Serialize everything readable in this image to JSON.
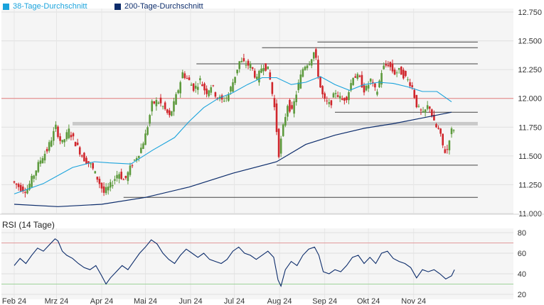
{
  "colors": {
    "ma38": "#1aa3dc",
    "ma200": "#0c2c6b",
    "candle_up": "#5d9a3d",
    "candle_down": "#d0262c",
    "rsi_line": "#0c2c6b",
    "rsi_upper": "#e2999b",
    "rsi_lower": "#9fd39a",
    "resistance": "#e57f80",
    "support": "#444444",
    "zone": "#bfbfbf"
  },
  "chart_data": [
    {
      "type": "candlestick",
      "legend": [
        {
          "name": "38-Tage-Durchschnitt",
          "color": "#1aa3dc"
        },
        {
          "name": "200-Tage-Durchschnitt",
          "color": "#0c2c6b"
        }
      ],
      "legend_position": "top-left",
      "y_ticks": [
        "12.750",
        "12.500",
        "12.250",
        "12.000",
        "11.750",
        "11.500",
        "11.250",
        "11.000"
      ],
      "ylim": [
        11.0,
        12.75
      ],
      "x_ticks": [
        "Feb 24",
        "Mrz 24",
        "Apr 24",
        "Mai 24",
        "Jun 24",
        "Jul 24",
        "Aug 24",
        "Sep 24",
        "Okt 24",
        "Nov 24"
      ],
      "x_tick_days": [
        0,
        29,
        60,
        90,
        121,
        151,
        182,
        213,
        243,
        274
      ],
      "grid": true,
      "price_path": [
        [
          0,
          11.28
        ],
        [
          6,
          11.22
        ],
        [
          10,
          11.2
        ],
        [
          15,
          11.34
        ],
        [
          20,
          11.48
        ],
        [
          24,
          11.55
        ],
        [
          30,
          11.75
        ],
        [
          34,
          11.6
        ],
        [
          39,
          11.72
        ],
        [
          44,
          11.6
        ],
        [
          49,
          11.48
        ],
        [
          54,
          11.42
        ],
        [
          58,
          11.32
        ],
        [
          63,
          11.18
        ],
        [
          68,
          11.25
        ],
        [
          73,
          11.36
        ],
        [
          77,
          11.28
        ],
        [
          82,
          11.42
        ],
        [
          88,
          11.55
        ],
        [
          92,
          11.7
        ],
        [
          96,
          11.95
        ],
        [
          100,
          11.98
        ],
        [
          104,
          11.92
        ],
        [
          108,
          11.84
        ],
        [
          111,
          11.95
        ],
        [
          114,
          12.08
        ],
        [
          117,
          12.22
        ],
        [
          121,
          12.16
        ],
        [
          125,
          12.08
        ],
        [
          129,
          12.16
        ],
        [
          133,
          12.05
        ],
        [
          137,
          12.12
        ],
        [
          140,
          12.02
        ],
        [
          144,
          11.98
        ],
        [
          148,
          12.02
        ],
        [
          152,
          12.16
        ],
        [
          156,
          12.32
        ],
        [
          160,
          12.3
        ],
        [
          164,
          12.28
        ],
        [
          168,
          12.16
        ],
        [
          172,
          12.3
        ],
        [
          176,
          12.24
        ],
        [
          180,
          11.92
        ],
        [
          183,
          11.52
        ],
        [
          186,
          11.75
        ],
        [
          189,
          11.95
        ],
        [
          192,
          11.88
        ],
        [
          196,
          12.1
        ],
        [
          200,
          12.28
        ],
        [
          204,
          12.32
        ],
        [
          207,
          12.4
        ],
        [
          209,
          12.3
        ],
        [
          211,
          12.12
        ],
        [
          214,
          11.98
        ],
        [
          218,
          11.94
        ],
        [
          222,
          12.06
        ],
        [
          226,
          11.98
        ],
        [
          230,
          12.02
        ],
        [
          234,
          12.2
        ],
        [
          238,
          12.18
        ],
        [
          242,
          12.06
        ],
        [
          246,
          12.16
        ],
        [
          250,
          12.04
        ],
        [
          254,
          12.26
        ],
        [
          258,
          12.3
        ],
        [
          262,
          12.22
        ],
        [
          266,
          12.24
        ],
        [
          270,
          12.18
        ],
        [
          274,
          12.12
        ],
        [
          278,
          11.92
        ],
        [
          282,
          11.86
        ],
        [
          286,
          11.95
        ],
        [
          290,
          11.76
        ],
        [
          293,
          11.72
        ],
        [
          296,
          11.56
        ],
        [
          298,
          11.52
        ],
        [
          300,
          11.66
        ],
        [
          302,
          11.74
        ]
      ],
      "ma38_path": [
        [
          0,
          11.17
        ],
        [
          20,
          11.26
        ],
        [
          40,
          11.4
        ],
        [
          55,
          11.45
        ],
        [
          65,
          11.44
        ],
        [
          80,
          11.43
        ],
        [
          95,
          11.55
        ],
        [
          110,
          11.66
        ],
        [
          120,
          11.8
        ],
        [
          130,
          11.92
        ],
        [
          140,
          12.0
        ],
        [
          150,
          12.05
        ],
        [
          160,
          12.12
        ],
        [
          170,
          12.18
        ],
        [
          180,
          12.18
        ],
        [
          190,
          12.12
        ],
        [
          200,
          12.14
        ],
        [
          210,
          12.19
        ],
        [
          220,
          12.12
        ],
        [
          230,
          12.07
        ],
        [
          240,
          12.12
        ],
        [
          250,
          12.14
        ],
        [
          260,
          12.13
        ],
        [
          270,
          12.1
        ],
        [
          280,
          12.06
        ],
        [
          290,
          12.06
        ],
        [
          300,
          11.97
        ]
      ],
      "ma200_path": [
        [
          0,
          11.08
        ],
        [
          30,
          11.06
        ],
        [
          60,
          11.08
        ],
        [
          90,
          11.14
        ],
        [
          120,
          11.23
        ],
        [
          150,
          11.35
        ],
        [
          180,
          11.45
        ],
        [
          200,
          11.6
        ],
        [
          220,
          11.68
        ],
        [
          240,
          11.74
        ],
        [
          260,
          11.78
        ],
        [
          280,
          11.83
        ],
        [
          300,
          11.88
        ]
      ],
      "horizontal_lines": [
        {
          "role": "resistance",
          "y": 12.0
        },
        {
          "role": "support",
          "y": 12.49,
          "from_day": 208,
          "to_day": 318
        },
        {
          "role": "support",
          "y": 12.44,
          "from_day": 170,
          "to_day": 318
        },
        {
          "role": "support",
          "y": 12.3,
          "from_day": 125,
          "to_day": 318
        },
        {
          "role": "support",
          "y": 11.88,
          "from_day": 220,
          "to_day": 318
        },
        {
          "role": "support",
          "y": 11.42,
          "from_day": 180,
          "to_day": 318
        },
        {
          "role": "support",
          "y": 11.14,
          "from_day": 75,
          "to_day": 318
        },
        {
          "role": "zone",
          "y": 11.78,
          "from_day": 40,
          "to_day": 318
        }
      ]
    },
    {
      "type": "line",
      "title": "RSI (14 Tage)",
      "y_ticks": [
        "80",
        "60",
        "40",
        "20"
      ],
      "ylim": [
        20,
        80
      ],
      "bands": {
        "upper": 70,
        "lower": 30
      },
      "x_ticks": [
        "Feb 24",
        "Mrz 24",
        "Apr 24",
        "Mai 24",
        "Jun 24",
        "Jul 24",
        "Aug 24",
        "Sep 24",
        "Okt 24",
        "Nov 24"
      ],
      "series": [
        {
          "values": [
            [
              0,
              48
            ],
            [
              4,
              55
            ],
            [
              8,
              50
            ],
            [
              12,
              58
            ],
            [
              16,
              65
            ],
            [
              20,
              62
            ],
            [
              24,
              68
            ],
            [
              28,
              74
            ],
            [
              30,
              72
            ],
            [
              33,
              62
            ],
            [
              36,
              58
            ],
            [
              40,
              55
            ],
            [
              44,
              50
            ],
            [
              48,
              46
            ],
            [
              52,
              44
            ],
            [
              56,
              48
            ],
            [
              60,
              38
            ],
            [
              63,
              30
            ],
            [
              66,
              36
            ],
            [
              70,
              42
            ],
            [
              74,
              48
            ],
            [
              78,
              44
            ],
            [
              82,
              52
            ],
            [
              86,
              60
            ],
            [
              90,
              66
            ],
            [
              94,
              73
            ],
            [
              98,
              69
            ],
            [
              102,
              60
            ],
            [
              106,
              54
            ],
            [
              110,
              50
            ],
            [
              114,
              58
            ],
            [
              118,
              64
            ],
            [
              122,
              60
            ],
            [
              126,
              56
            ],
            [
              130,
              60
            ],
            [
              134,
              54
            ],
            [
              138,
              52
            ],
            [
              142,
              50
            ],
            [
              146,
              54
            ],
            [
              150,
              62
            ],
            [
              154,
              66
            ],
            [
              158,
              60
            ],
            [
              162,
              58
            ],
            [
              166,
              54
            ],
            [
              170,
              58
            ],
            [
              174,
              62
            ],
            [
              178,
              56
            ],
            [
              181,
              34
            ],
            [
              183,
              28
            ],
            [
              186,
              44
            ],
            [
              190,
              52
            ],
            [
              194,
              48
            ],
            [
              198,
              58
            ],
            [
              202,
              64
            ],
            [
              206,
              66
            ],
            [
              209,
              58
            ],
            [
              212,
              42
            ],
            [
              216,
              40
            ],
            [
              220,
              44
            ],
            [
              224,
              42
            ],
            [
              228,
              48
            ],
            [
              232,
              56
            ],
            [
              236,
              58
            ],
            [
              240,
              50
            ],
            [
              244,
              56
            ],
            [
              248,
              50
            ],
            [
              252,
              60
            ],
            [
              256,
              62
            ],
            [
              260,
              55
            ],
            [
              264,
              52
            ],
            [
              268,
              50
            ],
            [
              272,
              46
            ],
            [
              276,
              36
            ],
            [
              280,
              44
            ],
            [
              284,
              42
            ],
            [
              288,
              44
            ],
            [
              292,
              40
            ],
            [
              296,
              35
            ],
            [
              300,
              38
            ],
            [
              302,
              44
            ]
          ]
        }
      ]
    }
  ]
}
